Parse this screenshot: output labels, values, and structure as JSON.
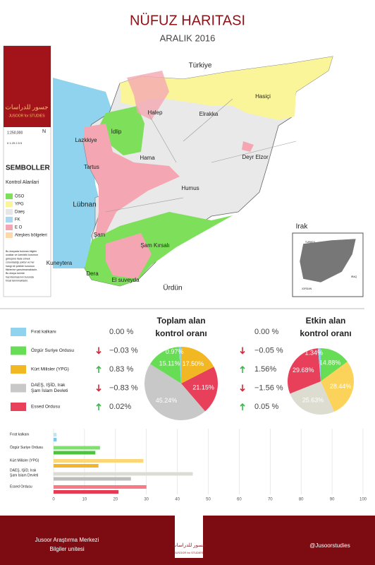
{
  "header": {
    "title": "NÜFUZ HARITASI",
    "subtitle": "ARALIK 2016"
  },
  "logo": {
    "arabic": "جسور للدراسات",
    "latin": "JUSOOR for STUDIES"
  },
  "scale": {
    "ratio": "1:250,000",
    "north": "N",
    "bar": "0  1.25  2.5      5"
  },
  "legend": {
    "title": "SEMBOLLER",
    "subtitle": "Kontrol Alanlari",
    "items": [
      {
        "label": "ÖSO",
        "color": "#7ee05a"
      },
      {
        "label": "YPG",
        "color": "#fbf59a"
      },
      {
        "label": "Daeş",
        "color": "#e6e6e6"
      },
      {
        "label": "FK",
        "color": "#a9d8f0"
      },
      {
        "label": "E O",
        "color": "#f4a7b3"
      },
      {
        "label": "Ateşkes bölgeleri",
        "color": "#fcd9a8"
      }
    ],
    "note": [
      "Bu dosyada bulunan bilgiler",
      "ocaklar ve üzerdeki kurumun",
      "görüşünü ifade etmek",
      "zorundadığı yoktur ve her",
      "hangi bir şekilde kurumun",
      "fikirlerine yansıtmamaktadır.",
      "Bu dosya üzerde",
      "hazırlanmasının burunda",
      "fırsat tanınmaktadır."
    ]
  },
  "map": {
    "labels": [
      "Türkiye",
      "Halep",
      "Elrakka",
      "Hasiçi",
      "İdlip",
      "Lazkkiye",
      "Hama",
      "Tartus",
      "Deyr Elzor",
      "Humus",
      "Lübnan",
      "Irak",
      "Şam",
      "Şam Kırsalı",
      "Kuneytera",
      "Dera",
      "El suveyda",
      "Ürdün"
    ]
  },
  "inset": {
    "labels": [
      "TURKEY",
      "IRAQ",
      "JORDAN"
    ]
  },
  "table": {
    "rows": [
      {
        "name": [
          "Fırat kalkanı"
        ],
        "color": "#8fd3ee",
        "total": "0.00 %",
        "active": "0.00 %"
      },
      {
        "name": [
          "Özgür Suriye Ordusu"
        ],
        "color": "#66dd55",
        "total": "−0.03 %",
        "total_trend": "down",
        "active": "−0.05 %",
        "active_trend": "down"
      },
      {
        "name": [
          "Kürt  Milisler (YPG)"
        ],
        "color": "#f2b824",
        "total": "0.83 %",
        "total_trend": "up",
        "active": "1.56%",
        "active_trend": "up"
      },
      {
        "name": [
          "DAEŞ, IŞİD, Irak",
          "Şam İslam Devleti"
        ],
        "color": "#c8c8c8",
        "total": "−0.83 %",
        "total_trend": "down",
        "active": "−1.56 %",
        "active_trend": "down"
      },
      {
        "name": [
          "Essed Ordusu"
        ],
        "color": "#e8405a",
        "total": "0.02%",
        "total_trend": "up",
        "active": "0.05 %",
        "active_trend": "up"
      }
    ]
  },
  "chart_data": [
    {
      "type": "pie",
      "title": [
        "Toplam alan",
        "kontrol oranı"
      ],
      "values": [
        17.5,
        21.15,
        45.24,
        15.11,
        0.97
      ],
      "value_labels": [
        "17.50%",
        "21.15%",
        "45.24%",
        "15.11%",
        "0.97%"
      ],
      "colors": [
        "#f2b824",
        "#e8405a",
        "#c8c8c8",
        "#66dd55",
        "#8fd3ee"
      ]
    },
    {
      "type": "pie",
      "title": [
        "Etkin alan",
        "kontrol oranı"
      ],
      "values": [
        14.88,
        28.44,
        25.63,
        29.68,
        1.34
      ],
      "value_labels": [
        "14.88%",
        "28.44%",
        "25.63%",
        "29.68%",
        "1.34%"
      ],
      "colors": [
        "#66dd55",
        "#fbd35a",
        "#dcdcd0",
        "#e8405a",
        "#8fd3ee"
      ]
    },
    {
      "type": "bar",
      "categories": [
        [
          "Fırat kalkanı"
        ],
        [
          "Özgür Suriye Ordusu"
        ],
        [
          "Kürt  Milisler (YPG)"
        ],
        [
          "DAEŞ, IŞİD, Irak",
          "Şam İslam Devleti"
        ],
        [
          "Essed Ordusu"
        ]
      ],
      "series": [
        {
          "colors": [
            "#bfe6f5",
            "#7fe070",
            "#fbd77a",
            "#dcdcd4",
            "#f77a86"
          ],
          "values": [
            1,
            15,
            29,
            45,
            30
          ]
        },
        {
          "colors": [
            "#7cc9ea",
            "#4cc43e",
            "#f0b52a",
            "#bdbdbd",
            "#e63a55"
          ],
          "values": [
            1,
            13.5,
            14.5,
            25,
            21
          ]
        }
      ],
      "xlim": [
        0,
        100
      ],
      "xticks": [
        0,
        10,
        20,
        30,
        40,
        50,
        60,
        70,
        80,
        90,
        100
      ],
      "grid": true
    }
  ],
  "footer": {
    "org": "Jusoor Araştırma Merkezi",
    "unit": "Bilgiler unitesi",
    "handle": "@Jusoorstudies",
    "arabic": "جسور للدراسات",
    "latin": "JUSOOR for STUDIES"
  }
}
